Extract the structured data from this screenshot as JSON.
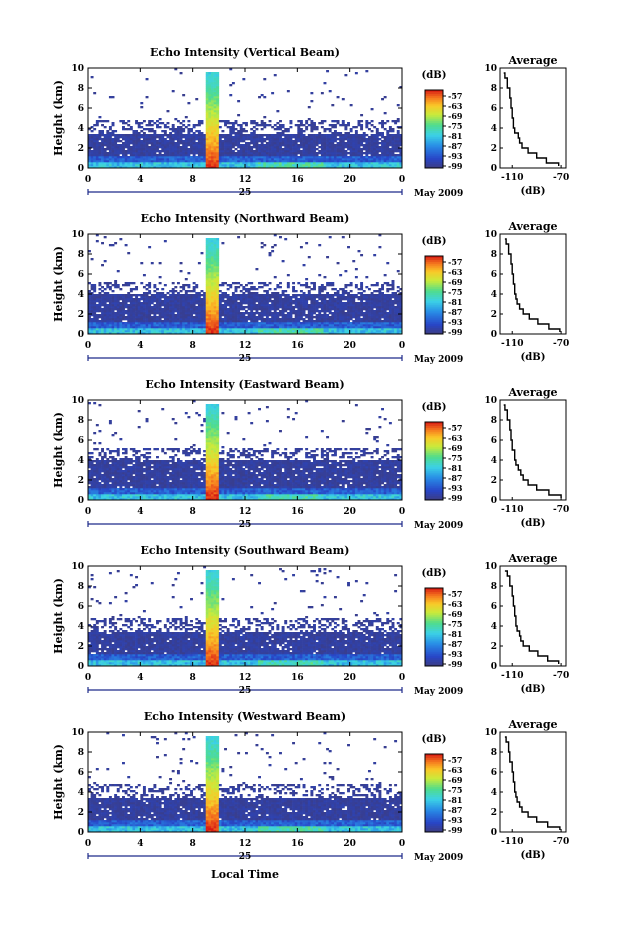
{
  "chart_data": {
    "type": "heatmap",
    "date_label": "May 2009",
    "day_label": "25",
    "xlabel": "Local Time",
    "ylabel": "Height (km)",
    "x_ticks": [
      "0",
      "4",
      "8",
      "12",
      "16",
      "20",
      "0"
    ],
    "y_ticks": [
      "0",
      "2",
      "4",
      "6",
      "8",
      "10"
    ],
    "xlim": [
      0,
      24
    ],
    "ylim": [
      0,
      10
    ],
    "colorbar": {
      "unit": "(dB)",
      "tick_labels": [
        "-57",
        "-63",
        "-69",
        "-75",
        "-81",
        "-87",
        "-93",
        "-99"
      ],
      "range": [
        -99,
        -57
      ]
    },
    "average": {
      "title": "Average",
      "xlabel": "(dB)",
      "x_ticks": [
        "-110",
        "-70"
      ],
      "xlim": [
        -120,
        -66
      ],
      "y_ticks": [
        "0",
        "2",
        "4",
        "6",
        "8",
        "10"
      ],
      "ylim": [
        0,
        10
      ]
    },
    "panels": [
      {
        "title": "Echo Intensity (Vertical Beam)",
        "rain_start_hour": 9.1,
        "rain_end_hour": 9.9,
        "cloud_top_km": 3.5,
        "average_profile": {
          "heights_km": [
            0.2,
            0.5,
            1.0,
            1.5,
            2.0,
            2.5,
            3.0,
            3.5,
            4.0,
            5.0,
            6.0,
            7.0,
            8.0,
            9.0,
            9.5
          ],
          "db": [
            -72,
            -82,
            -90,
            -97,
            -102,
            -104,
            -105,
            -108,
            -109,
            -110,
            -111,
            -112,
            -114,
            -116,
            -117
          ]
        }
      },
      {
        "title": "Echo Intensity (Northward Beam)",
        "rain_start_hour": 9.1,
        "rain_end_hour": 9.9,
        "cloud_top_km": 4.0,
        "average_profile": {
          "heights_km": [
            0.2,
            0.5,
            1.0,
            1.5,
            2.0,
            2.5,
            3.0,
            3.5,
            4.0,
            5.0,
            6.0,
            7.0,
            8.0,
            9.0,
            9.5
          ],
          "db": [
            -71,
            -80,
            -89,
            -96,
            -101,
            -104,
            -106,
            -107,
            -108,
            -109,
            -110,
            -111,
            -113,
            -115,
            -116
          ]
        }
      },
      {
        "title": "Echo Intensity (Eastward Beam)",
        "rain_start_hour": 9.1,
        "rain_end_hour": 9.9,
        "cloud_top_km": 4.0,
        "average_profile": {
          "heights_km": [
            0.2,
            0.5,
            1.0,
            1.5,
            2.0,
            2.5,
            3.0,
            3.5,
            4.0,
            5.0,
            6.0,
            7.0,
            8.0,
            9.0,
            9.5
          ],
          "db": [
            -70,
            -80,
            -90,
            -97,
            -101,
            -103,
            -105,
            -107,
            -108,
            -110,
            -111,
            -112,
            -114,
            -116,
            -117
          ]
        }
      },
      {
        "title": "Echo Intensity (Southward Beam)",
        "rain_start_hour": 9.1,
        "rain_end_hour": 9.9,
        "cloud_top_km": 3.5,
        "average_profile": {
          "heights_km": [
            0.2,
            0.5,
            1.0,
            1.5,
            2.0,
            2.5,
            3.0,
            3.5,
            4.0,
            5.0,
            6.0,
            7.0,
            8.0,
            9.0,
            9.5
          ],
          "db": [
            -72,
            -81,
            -89,
            -96,
            -101,
            -103,
            -104,
            -106,
            -107,
            -108,
            -109,
            -110,
            -112,
            -114,
            -116
          ]
        }
      },
      {
        "title": "Echo Intensity (Westward Beam)",
        "rain_start_hour": 9.1,
        "rain_end_hour": 9.9,
        "cloud_top_km": 3.5,
        "average_profile": {
          "heights_km": [
            0.2,
            0.5,
            1.0,
            1.5,
            2.0,
            2.5,
            3.0,
            3.5,
            4.0,
            5.0,
            6.0,
            7.0,
            8.0,
            9.0,
            9.5
          ],
          "db": [
            -71,
            -81,
            -90,
            -97,
            -102,
            -104,
            -106,
            -107,
            -108,
            -109,
            -110,
            -112,
            -113,
            -115,
            -116
          ]
        }
      }
    ]
  }
}
